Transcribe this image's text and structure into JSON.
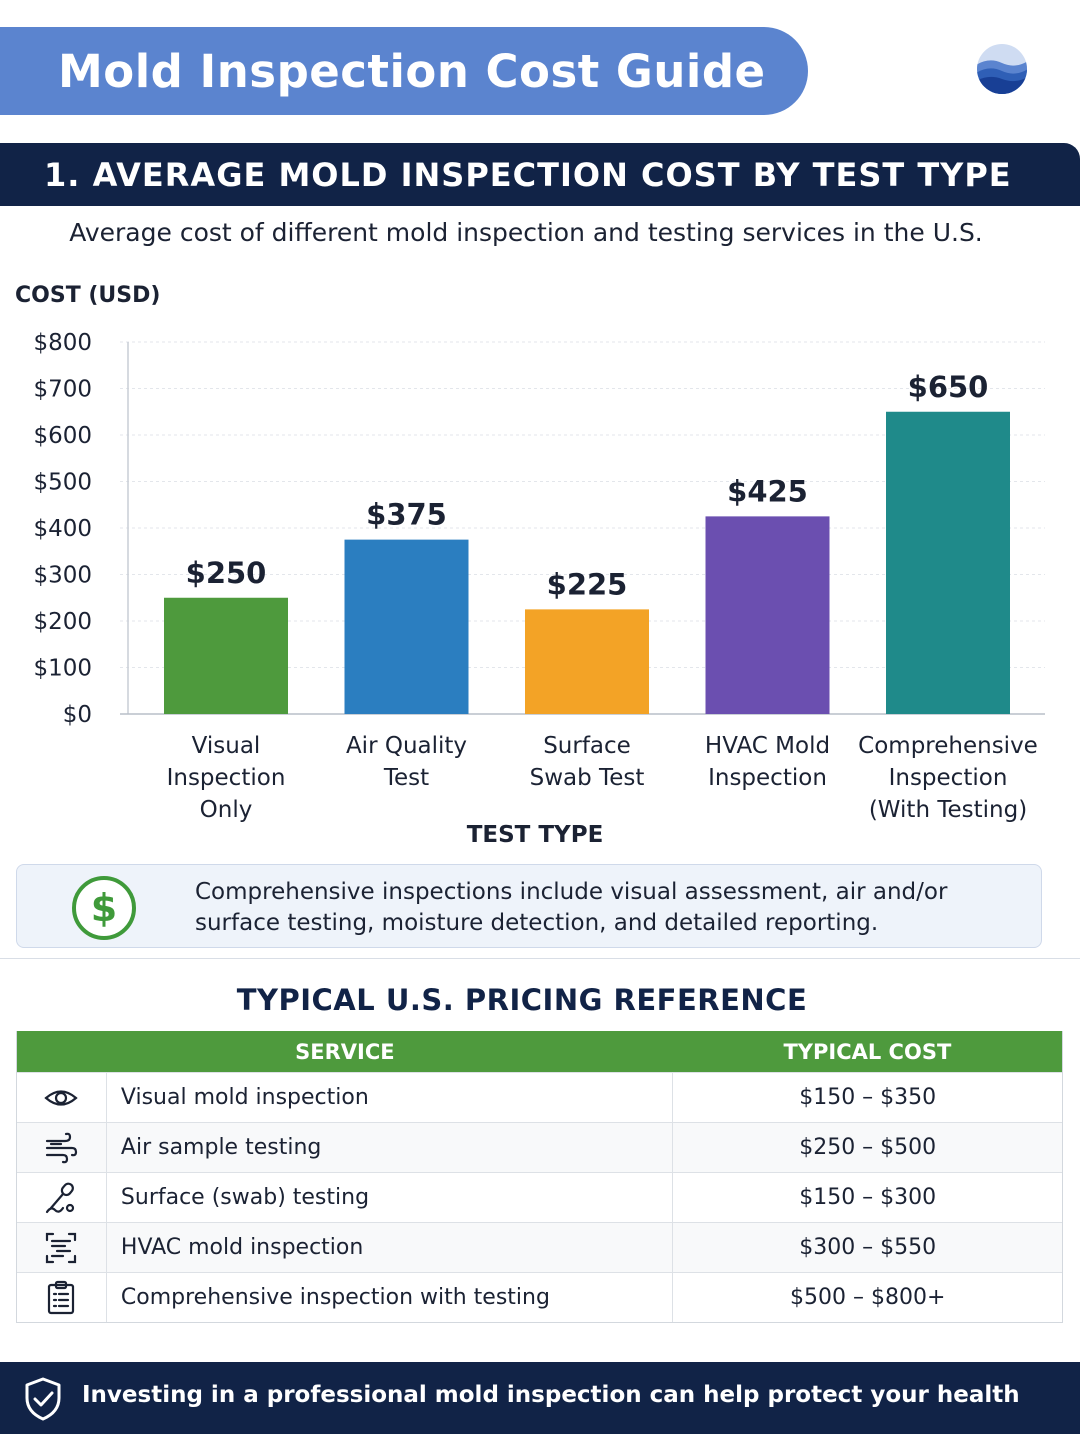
{
  "header": {
    "title": "Mold Inspection Cost Guide"
  },
  "section": {
    "title": "1. AVERAGE MOLD INSPECTION COST BY TEST TYPE",
    "subtitle": "Average cost of different mold inspection and testing services in the U.S."
  },
  "chart_data": {
    "type": "bar",
    "title": "1. AVERAGE MOLD INSPECTION COST BY TEST TYPE",
    "subtitle": "Average cost of different mold inspection and testing services in the U.S.",
    "ylabel": "COST (USD)",
    "xlabel": "TEST TYPE",
    "ylim": [
      0,
      800
    ],
    "yticks": [
      "$0",
      "$100",
      "$200",
      "$300",
      "$400",
      "$500",
      "$600",
      "$700",
      "$800"
    ],
    "grid": true,
    "categories": [
      [
        "Visual",
        "Inspection",
        "Only"
      ],
      [
        "Air Quality",
        "Test"
      ],
      [
        "Surface",
        "Swab Test"
      ],
      [
        "HVAC Mold",
        "Inspection"
      ],
      [
        "Comprehensive",
        "Inspection",
        "(With Testing)"
      ]
    ],
    "values": [
      250,
      375,
      225,
      425,
      650
    ],
    "value_labels": [
      "$250",
      "$375",
      "$225",
      "$425",
      "$650"
    ],
    "colors": [
      "#4e9a3d",
      "#2b7ec0",
      "#f3a326",
      "#6b4fb0",
      "#1f8a8a"
    ]
  },
  "note": {
    "text": "Comprehensive inspections include visual assessment, air and/or surface testing, moisture detection, and detailed reporting.",
    "icon": "dollar-circle-icon"
  },
  "pricing": {
    "title": "TYPICAL U.S. PRICING REFERENCE",
    "headers": {
      "service": "SERVICE",
      "cost": "TYPICAL COST"
    },
    "rows": [
      {
        "icon": "eye-icon",
        "service": "Visual mold inspection",
        "cost": "$150 – $350"
      },
      {
        "icon": "air-icon",
        "service": "Air sample testing",
        "cost": "$250 – $500"
      },
      {
        "icon": "swab-icon",
        "service": "Surface (swab) testing",
        "cost": "$150 – $300"
      },
      {
        "icon": "hvac-icon",
        "service": "HVAC mold inspection",
        "cost": "$300 – $550"
      },
      {
        "icon": "clipboard-icon",
        "service": "Comprehensive inspection with testing",
        "cost": "$500 – $800+"
      }
    ]
  },
  "footer": {
    "text": "Investing in a professional mold inspection can help protect your health",
    "icon": "shield-check-icon"
  },
  "colors": {
    "banner": "#5b84cf",
    "navy": "#112347",
    "table_header": "#4e9a3d",
    "note_bg": "#eef3fa"
  }
}
